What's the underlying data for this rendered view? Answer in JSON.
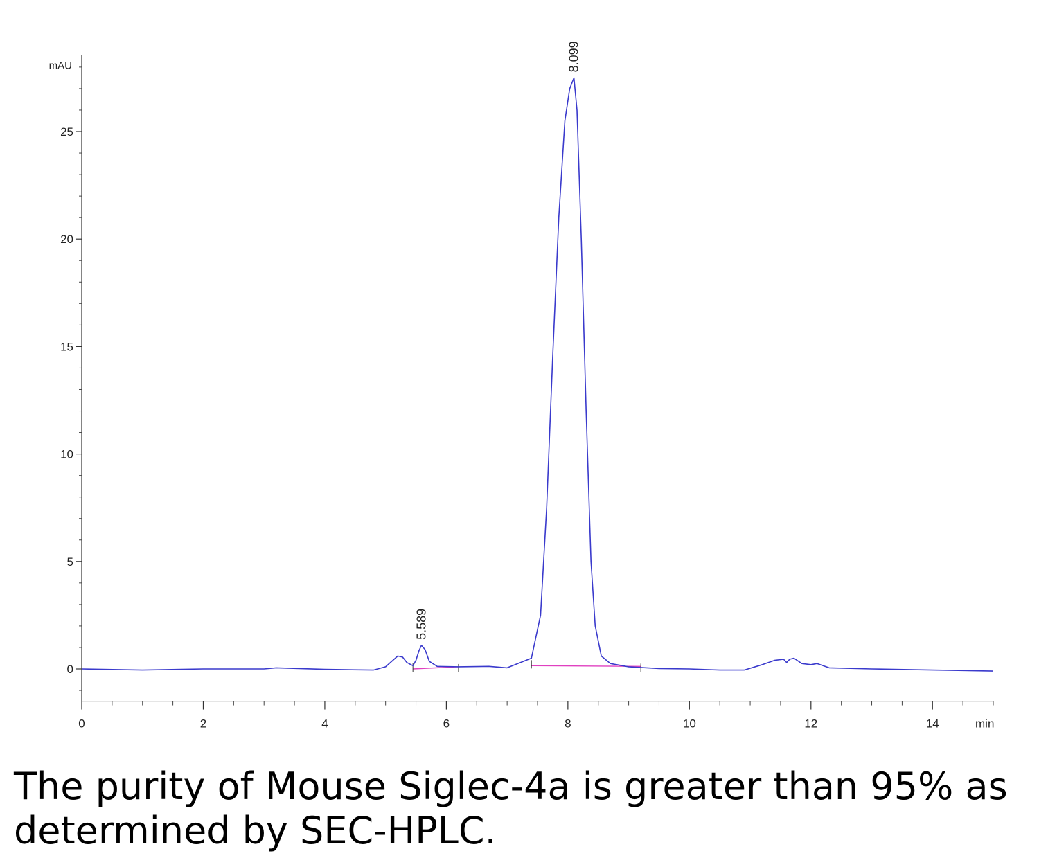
{
  "chart_data": {
    "type": "line",
    "y_unit": "mAU",
    "x_unit": "min",
    "xlim": [
      0,
      15
    ],
    "ylim": [
      -1.5,
      28.5
    ],
    "x_ticks": [
      0,
      2,
      4,
      6,
      8,
      10,
      12,
      14
    ],
    "y_ticks": [
      0,
      5,
      10,
      15,
      20,
      25
    ],
    "grid": false,
    "series": [
      {
        "color": "#3a3acc",
        "x": [
          0,
          1,
          2,
          3,
          3.2,
          4,
          4.8,
          5.0,
          5.1,
          5.2,
          5.28,
          5.35,
          5.45,
          5.5,
          5.55,
          5.59,
          5.65,
          5.72,
          5.85,
          6.2,
          6.7,
          7.0,
          7.4,
          7.55,
          7.65,
          7.75,
          7.85,
          7.95,
          8.03,
          8.099,
          8.15,
          8.22,
          8.3,
          8.38,
          8.45,
          8.55,
          8.7,
          9.0,
          9.5,
          10.0,
          10.5,
          10.9,
          11.2,
          11.4,
          11.55,
          11.6,
          11.65,
          11.72,
          11.85,
          12.0,
          12.1,
          12.3,
          13.0,
          14.0,
          15.0
        ],
        "y": [
          0.0,
          -0.05,
          0.0,
          0.0,
          0.05,
          -0.02,
          -0.05,
          0.1,
          0.35,
          0.6,
          0.55,
          0.3,
          0.15,
          0.4,
          0.85,
          1.1,
          0.9,
          0.35,
          0.12,
          0.1,
          0.12,
          0.05,
          0.5,
          2.5,
          7.5,
          14.5,
          21.0,
          25.5,
          27.0,
          27.5,
          26.0,
          20.0,
          12.0,
          5.0,
          2.0,
          0.6,
          0.25,
          0.1,
          0.02,
          0.0,
          -0.05,
          -0.05,
          0.2,
          0.4,
          0.45,
          0.3,
          0.45,
          0.5,
          0.25,
          0.2,
          0.25,
          0.05,
          0.0,
          -0.05,
          -0.1
        ]
      }
    ],
    "baselines": [
      {
        "color": "#e040c0",
        "x": [
          5.45,
          6.2
        ],
        "y": [
          0.0,
          0.1
        ]
      },
      {
        "color": "#e040c0",
        "x": [
          7.4,
          9.2
        ],
        "y": [
          0.15,
          0.12
        ]
      }
    ],
    "peak_labels": [
      {
        "x": 5.589,
        "y": 1.1,
        "text": "5.589"
      },
      {
        "x": 8.099,
        "y": 27.5,
        "text": "8.099"
      }
    ],
    "caption": "The purity of Mouse Siglec-4a is greater than 95% as determined by SEC-HPLC."
  }
}
